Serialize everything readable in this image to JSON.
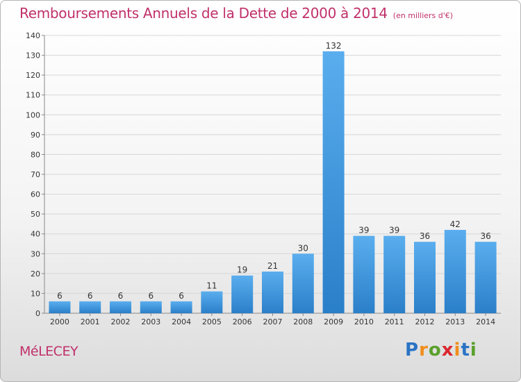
{
  "title": "Remboursements Annuels de la Dette de 2000 à 2014",
  "unit": "(en milliers d'€)",
  "commune": "MéLECEY",
  "logo": {
    "letters": [
      "P",
      "r",
      "o",
      "x",
      "i",
      "t",
      "i"
    ],
    "colors": [
      "#2a73c5",
      "#f18e1c",
      "#5aa02c",
      "#d9282f",
      "#f18e1c",
      "#2a73c5",
      "#5aa02c"
    ]
  },
  "chart_data": {
    "type": "bar",
    "categories": [
      "2000",
      "2001",
      "2002",
      "2003",
      "2004",
      "2005",
      "2006",
      "2007",
      "2008",
      "2009",
      "2010",
      "2011",
      "2012",
      "2013",
      "2014"
    ],
    "values": [
      6,
      6,
      6,
      6,
      6,
      11,
      19,
      21,
      30,
      132,
      39,
      39,
      36,
      42,
      36
    ],
    "title": "Remboursements Annuels de la Dette de 2000 à 2014",
    "ylim": [
      0,
      140
    ],
    "yticks": [
      0,
      10,
      20,
      30,
      40,
      50,
      60,
      70,
      80,
      90,
      100,
      110,
      120,
      130,
      140
    ],
    "grid": true,
    "bar_color": "#3d97e0"
  }
}
